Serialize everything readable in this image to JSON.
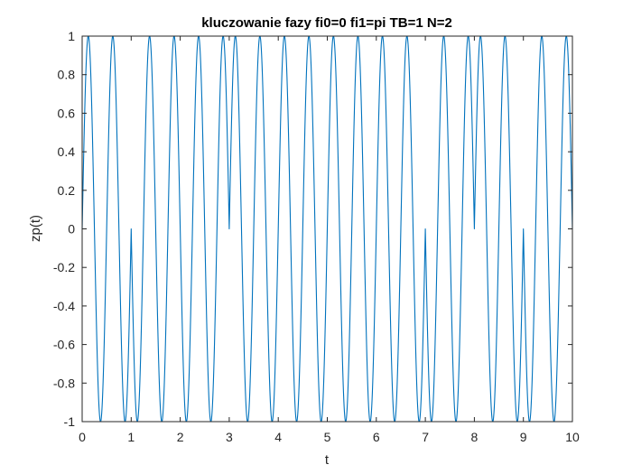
{
  "chart_data": {
    "type": "line",
    "title": "kluczowanie fazy    fi0=0 fi1=pi TB=1 N=2",
    "xlabel": "t",
    "ylabel": "zp(t)",
    "xlim": [
      0,
      10
    ],
    "ylim": [
      -1,
      1
    ],
    "xticks": [
      "0",
      "1",
      "2",
      "3",
      "4",
      "5",
      "6",
      "7",
      "8",
      "9",
      "10"
    ],
    "yticks": [
      "1",
      "0.8",
      "0.6",
      "0.4",
      "0.2",
      "0",
      "-0.2",
      "-0.4",
      "-0.6",
      "-0.8",
      "-1"
    ],
    "grid": false,
    "legend": "none",
    "series": [
      {
        "color": "#0072BD",
        "amplitude": 1,
        "frequency": 2,
        "bit_duration": 1,
        "bits": [
          0,
          1,
          1,
          0,
          0,
          0,
          0,
          1,
          0,
          1
        ],
        "phases": [
          "0",
          "pi"
        ]
      }
    ]
  }
}
